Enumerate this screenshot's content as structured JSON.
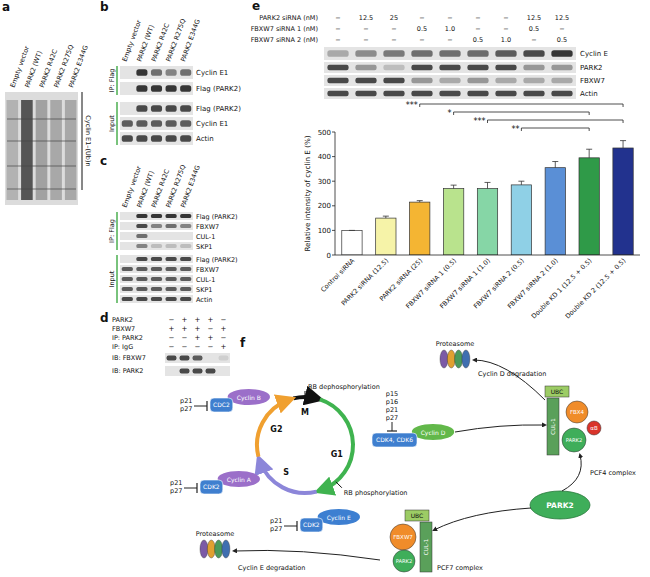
{
  "chart_data": {
    "type": "bar",
    "y_label": "Relative intensity of cyclin E (%)",
    "categories": [
      "Control siRNA",
      "PARK2 siRNA (12.5)",
      "PARK2 siRNA (25)",
      "FBXW7 siRNA 1 (0.5)",
      "FBXW7 siRNA 1 (1.0)",
      "FBXW7 siRNA 2 (0.5)",
      "FBXW7 siRNA 2 (1.0)",
      "Double KD 1 (12.5 + 0.5)",
      "Double KD 2 (12.5 + 0.5)"
    ],
    "values": [
      100,
      150,
      215,
      270,
      270,
      285,
      355,
      395,
      435
    ],
    "errors": [
      0,
      8,
      6,
      14,
      25,
      15,
      25,
      35,
      30
    ],
    "colors": [
      "#ffffff",
      "#f6f3a8",
      "#f4b533",
      "#b9e38d",
      "#86d6a6",
      "#8fd0e6",
      "#5a8fd6",
      "#2f9a48",
      "#22328e"
    ],
    "ylim": [
      0,
      500
    ],
    "yticks": [
      0,
      100,
      200,
      300,
      400,
      500
    ],
    "grid": false,
    "comparisons": [
      {
        "from": 2,
        "to": 8,
        "label": "***"
      },
      {
        "from": 3,
        "to": 7,
        "label": "*"
      },
      {
        "from": 4,
        "to": 8,
        "label": "***"
      },
      {
        "from": 5,
        "to": 7,
        "label": "**"
      }
    ]
  },
  "panels": {
    "a": {
      "letter": "a",
      "lanes": [
        "Empty vector",
        "PARK2 (WT)",
        "PARK2 R42C",
        "PARK2 R275Q",
        "PARK2 E344G"
      ],
      "band_label": "Cyclin E1–(Ub)n"
    },
    "b": {
      "letter": "b",
      "lanes": [
        "Empty vector",
        "PARK2 (WT)",
        "PARK2 R42C",
        "PARK2 R275Q",
        "PARK2 E344G"
      ],
      "groups": [
        {
          "label": "IP: Flag",
          "rows": [
            "Cyclin E1",
            "Flag (PARK2)"
          ]
        },
        {
          "label": "Input",
          "rows": [
            "Flag (PARK2)",
            "Cyclin E1",
            "Actin"
          ]
        }
      ]
    },
    "c": {
      "letter": "c",
      "lanes": [
        "Empty vector",
        "PARK2 (WT)",
        "PARK2 R42C",
        "PARK2 R275Q",
        "PARK2 E344G"
      ],
      "groups": [
        {
          "label": "IP: Flag",
          "rows": [
            "Flag (PARK2)",
            "FBXW7",
            "CUL-1",
            "SKP1"
          ]
        },
        {
          "label": "Input",
          "rows": [
            "Flag (PARK2)",
            "FBXW7",
            "CUL-1",
            "SKP1",
            "Actin"
          ]
        }
      ]
    },
    "d": {
      "letter": "d",
      "conditions": [
        {
          "label": "PARK2",
          "marks": [
            "−",
            "+",
            "+",
            "+",
            "−"
          ]
        },
        {
          "label": "FBXW7",
          "marks": [
            "+",
            "+",
            "+",
            "−",
            "+"
          ]
        },
        {
          "label": "IP: PARK2",
          "marks": [
            "−",
            "−",
            "+",
            "+",
            "−"
          ]
        },
        {
          "label": "IP: IgG",
          "marks": [
            "−",
            "−",
            "−",
            "−",
            "+"
          ]
        }
      ],
      "blots": [
        "IB: FBXW7",
        "IB: PARK2"
      ]
    },
    "e": {
      "letter": "e",
      "conditions": [
        {
          "label": "PARK2 siRNA (nM)",
          "marks": [
            "−",
            "12.5",
            "25",
            "−",
            "−",
            "−",
            "−",
            "12.5",
            "12.5"
          ]
        },
        {
          "label": "FBXW7 siRNA 1 (nM)",
          "marks": [
            "−",
            "−",
            "−",
            "0.5",
            "1.0",
            "−",
            "−",
            "0.5",
            "−"
          ]
        },
        {
          "label": "FBXW7 siRNA 2 (nM)",
          "marks": [
            "−",
            "−",
            "−",
            "−",
            "−",
            "0.5",
            "1.0",
            "−",
            "0.5"
          ]
        }
      ],
      "blots": [
        "Cyclin E",
        "PARK2",
        "FBXW7",
        "Actin"
      ]
    },
    "f": {
      "letter": "f",
      "phases": [
        "M",
        "G1",
        "S",
        "G2"
      ],
      "rb_dephos": "RB dephosphorylation",
      "rb_phos": "RB phosphorylation",
      "complexes": [
        {
          "cdk": "CDC2",
          "cyclin": "Cyclin B",
          "inhibitors": [
            "p21",
            "p27"
          ]
        },
        {
          "cdk": "CDK2",
          "cyclin": "Cyclin A",
          "inhibitors": [
            "p21",
            "p27"
          ]
        },
        {
          "cdk": "CDK4, CDK6",
          "cyclin": "Cyclin D",
          "inhibitors": [
            "p15",
            "p16",
            "p21",
            "p27"
          ]
        },
        {
          "cdk": "CDK2",
          "cyclin": "Cyclin E",
          "inhibitors": [
            "p21",
            "p27"
          ]
        }
      ],
      "proteasomes": [
        {
          "label": "Proteasome",
          "target": "Cyclin D degradation"
        },
        {
          "label": "Proteasome",
          "target": "Cyclin E degradation"
        }
      ],
      "pcf4": {
        "name": "PCF4 complex",
        "parts": [
          "UBC",
          "CUL-1",
          "FBX4",
          "PARK2",
          "αB"
        ]
      },
      "pcf7": {
        "name": "PCF7 complex",
        "parts": [
          "UBC",
          "CUL-1",
          "FBXW7",
          "PARK2"
        ]
      },
      "park2": "PARK2"
    }
  }
}
